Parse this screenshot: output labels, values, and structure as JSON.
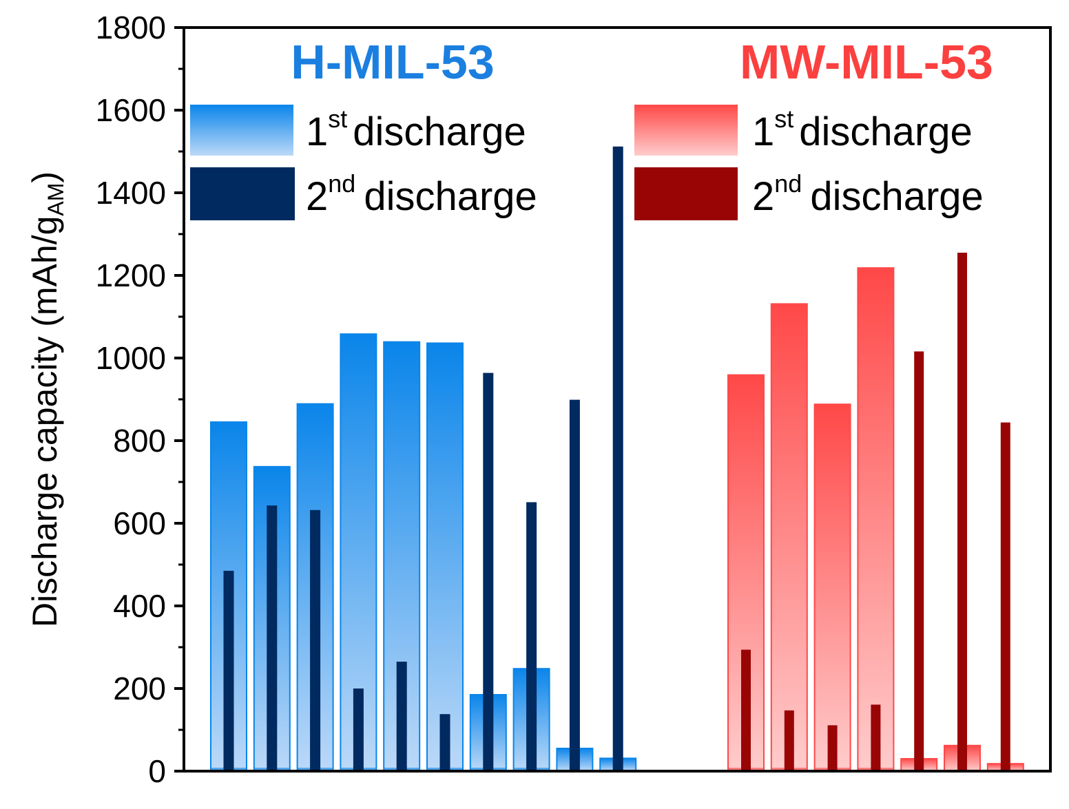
{
  "chart_data": {
    "type": "bar",
    "ylabel": "Discharge capacity (mAh/g",
    "ylabel_subscript": "AM",
    "ylabel_close": ")",
    "ylim": [
      0,
      1800
    ],
    "y_ticks": [
      0,
      200,
      400,
      600,
      800,
      1000,
      1200,
      1400,
      1600,
      1800
    ],
    "y_tick_labels": [
      "0",
      "200",
      "400",
      "600",
      "800",
      "1000",
      "1200",
      "1400",
      "1600",
      "1800"
    ],
    "x_tick_labels": [],
    "groups": [
      {
        "name": "H-MIL-53",
        "color": "#1b7fe0",
        "legend": [
          {
            "prefix": "1",
            "sup": "st",
            "text": "discharge",
            "gradient_top": "#0a85ea",
            "gradient_bottom": "#bcd9f8"
          },
          {
            "prefix": "2",
            "sup": "nd",
            "text": "discharge",
            "color": "#002a60"
          }
        ],
        "series": [
          {
            "name": "1st discharge",
            "values": [
              845,
              737,
              889,
              1058,
              1039,
              1036,
              185,
              248,
              55,
              31
            ]
          },
          {
            "name": "2nd discharge",
            "values": [
              485,
              643,
              632,
              200,
              265,
              138,
              964,
              651,
              899,
              1512
            ]
          }
        ]
      },
      {
        "name": "MW-MIL-53",
        "color": "#fb4040",
        "legend": [
          {
            "prefix": "1",
            "sup": "st",
            "text": "discharge",
            "gradient_top": "#ff4848",
            "gradient_bottom": "#ffcccc"
          },
          {
            "prefix": "2",
            "sup": "nd",
            "text": "discharge",
            "color": "#990505"
          }
        ],
        "series": [
          {
            "name": "1st discharge",
            "values": [
              959,
              1131,
              888,
              1218,
              30,
              62,
              18
            ]
          },
          {
            "name": "2nd discharge",
            "values": [
              294,
              147,
              111,
              161,
              1016,
              1255,
              844
            ]
          }
        ]
      }
    ]
  }
}
